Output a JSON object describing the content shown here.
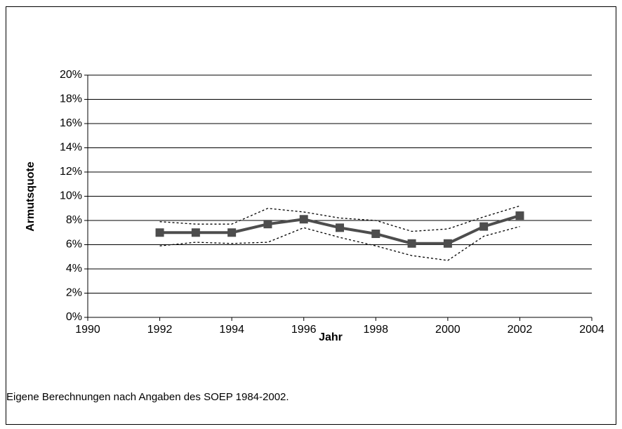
{
  "chart_data": {
    "type": "line",
    "x_label": "Jahr",
    "y_label": "Armutsquote",
    "note": "Eigene Berechnungen nach Angaben des SOEP 1984-2002.",
    "x": [
      1992,
      1993,
      1994,
      1995,
      1996,
      1997,
      1998,
      1999,
      2000,
      2001,
      2002
    ],
    "series": [
      {
        "color": "#4d4d4d",
        "style": "solid",
        "markers": true,
        "values": [
          7.0,
          7.0,
          7.0,
          7.7,
          8.1,
          7.4,
          6.9,
          6.1,
          6.1,
          7.5,
          8.4
        ]
      },
      {
        "color": "#000000",
        "style": "dotted",
        "markers": false,
        "values": [
          7.9,
          7.7,
          7.7,
          9.0,
          8.7,
          8.2,
          8.0,
          7.1,
          7.3,
          8.3,
          9.2
        ]
      },
      {
        "color": "#000000",
        "style": "dotted",
        "markers": false,
        "values": [
          5.9,
          6.2,
          6.1,
          6.2,
          7.4,
          6.6,
          5.9,
          5.1,
          4.7,
          6.7,
          7.5
        ]
      }
    ],
    "xlim": [
      1990,
      2004
    ],
    "xticks": [
      1990,
      1992,
      1994,
      1996,
      1998,
      2000,
      2002,
      2004
    ],
    "ylim": [
      0,
      20
    ],
    "yticks": [
      {
        "value": 0,
        "label": "0%"
      },
      {
        "value": 2,
        "label": "2%"
      },
      {
        "value": 4,
        "label": "4%"
      },
      {
        "value": 6,
        "label": "6%"
      },
      {
        "value": 8,
        "label": "8%"
      },
      {
        "value": 10,
        "label": "10%"
      },
      {
        "value": 12,
        "label": "12%"
      },
      {
        "value": 14,
        "label": "14%"
      },
      {
        "value": 16,
        "label": "16%"
      },
      {
        "value": 18,
        "label": "18%"
      },
      {
        "value": 20,
        "label": "20%"
      }
    ],
    "grid": true
  }
}
